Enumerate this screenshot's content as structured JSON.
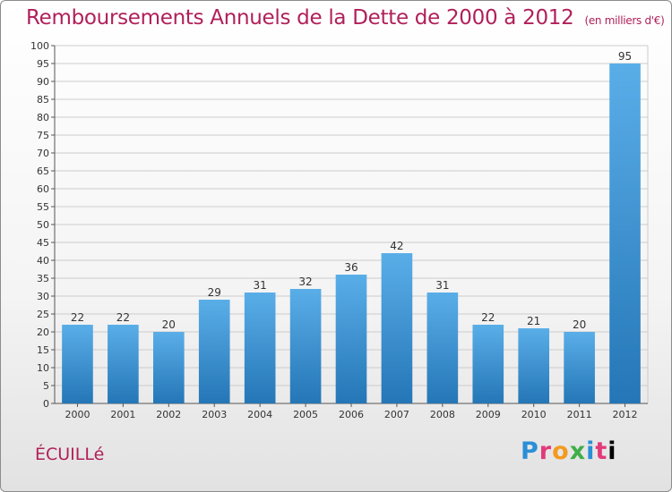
{
  "header": {
    "title": "Remboursements Annuels de la Dette de 2000 à 2012",
    "unit": "(en milliers d'€)"
  },
  "footer": {
    "place": "ÉCUILLé",
    "logo": [
      "P",
      "r",
      "o",
      "x",
      "i",
      "t",
      "i"
    ]
  },
  "colors": {
    "title": "#b0205a",
    "bar_light": "#5aaee8",
    "bar_dark": "#2476b6",
    "grid": "#cccccc"
  },
  "chart_data": {
    "type": "bar",
    "title": "Remboursements Annuels de la Dette de 2000 à 2012",
    "subtitle": "(en milliers d'€)",
    "categories": [
      "2000",
      "2001",
      "2002",
      "2003",
      "2004",
      "2005",
      "2006",
      "2007",
      "2008",
      "2009",
      "2010",
      "2011",
      "2012"
    ],
    "values": [
      22,
      22,
      20,
      29,
      31,
      32,
      36,
      42,
      31,
      22,
      21,
      20,
      95
    ],
    "ylim": [
      0,
      100
    ],
    "ytick_step": 5,
    "grid": true,
    "legend": "none"
  }
}
